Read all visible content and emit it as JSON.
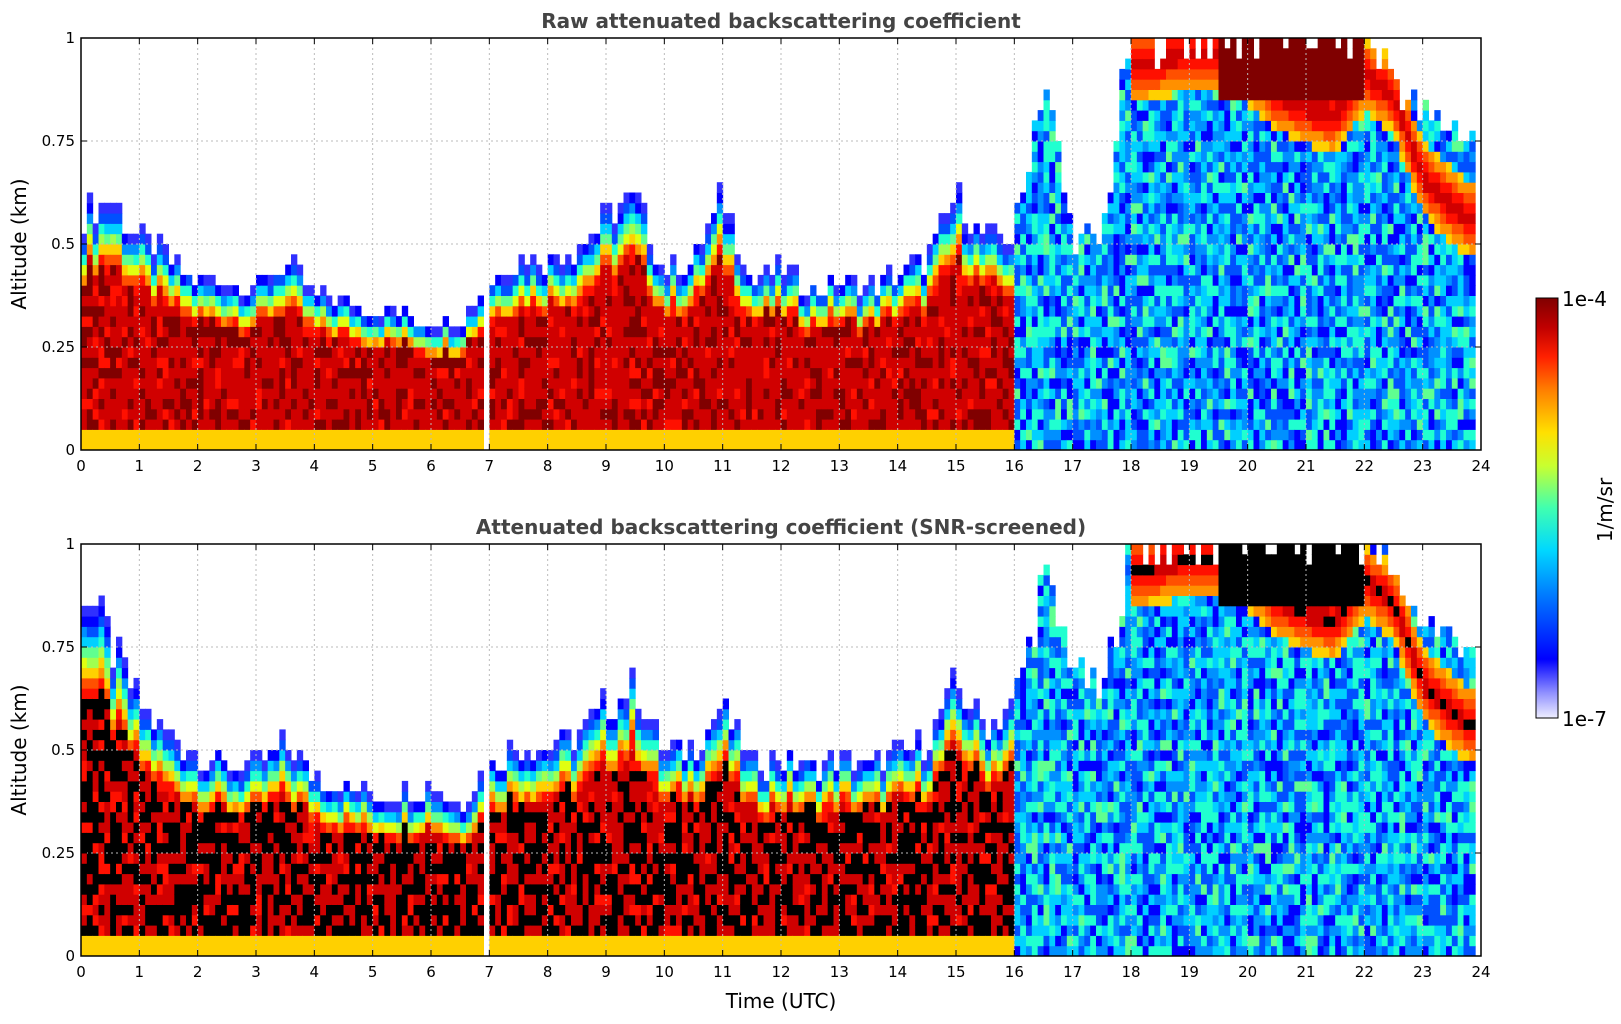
{
  "chart_data": [
    {
      "type": "heatmap",
      "title": "Raw attenuated backscattering coefficient",
      "xlabel": "",
      "ylabel": "Altitude (km)",
      "xlim": [
        0,
        24
      ],
      "ylim": [
        0,
        1
      ],
      "xticks": [
        "0",
        "1",
        "2",
        "3",
        "4",
        "5",
        "6",
        "7",
        "8",
        "9",
        "10",
        "11",
        "12",
        "13",
        "14",
        "15",
        "16",
        "17",
        "18",
        "19",
        "20",
        "21",
        "22",
        "23",
        "24"
      ],
      "yticks": [
        "0",
        "0.25",
        "0.5",
        "0.75",
        "1"
      ],
      "grid": true,
      "screened": false,
      "layer_top_km": [
        [
          0,
          0.55
        ],
        [
          0.5,
          0.6
        ],
        [
          1,
          0.5
        ],
        [
          1.5,
          0.45
        ],
        [
          2,
          0.4
        ],
        [
          2.5,
          0.4
        ],
        [
          3,
          0.38
        ],
        [
          3.5,
          0.45
        ],
        [
          4,
          0.36
        ],
        [
          4.5,
          0.35
        ],
        [
          5,
          0.33
        ],
        [
          5.5,
          0.32
        ],
        [
          6,
          0.3
        ],
        [
          6.5,
          0.3
        ],
        [
          7,
          0.4
        ],
        [
          7.5,
          0.45
        ],
        [
          8,
          0.45
        ],
        [
          8.5,
          0.48
        ],
        [
          9,
          0.55
        ],
        [
          9.5,
          0.6
        ],
        [
          10,
          0.42
        ],
        [
          10.5,
          0.45
        ],
        [
          11,
          0.6
        ],
        [
          11.5,
          0.4
        ],
        [
          12,
          0.42
        ],
        [
          12.5,
          0.38
        ],
        [
          13,
          0.4
        ],
        [
          13.5,
          0.38
        ],
        [
          14,
          0.42
        ],
        [
          14.5,
          0.45
        ],
        [
          15,
          0.6
        ],
        [
          15.5,
          0.5
        ],
        [
          16,
          0.5
        ],
        [
          16.5,
          0.9
        ],
        [
          17,
          0.5
        ],
        [
          17.5,
          0.5
        ],
        [
          18,
          1.0
        ],
        [
          19,
          1.0
        ],
        [
          20,
          1.0
        ],
        [
          21,
          1.0
        ],
        [
          22,
          1.0
        ],
        [
          23,
          0.8
        ],
        [
          23.8,
          0.75
        ]
      ],
      "upper_layer_km": [
        [
          18,
          0.92
        ],
        [
          19,
          0.95
        ],
        [
          19.8,
          0.95
        ],
        [
          20.5,
          0.85
        ],
        [
          21,
          0.82
        ],
        [
          21.5,
          0.8
        ],
        [
          22,
          0.9
        ],
        [
          22.5,
          0.85
        ],
        [
          23,
          0.65
        ],
        [
          23.5,
          0.58
        ],
        [
          23.8,
          0.55
        ]
      ]
    },
    {
      "type": "heatmap",
      "title": "Attenuated backscattering coefficient (SNR-screened)",
      "xlabel": "Time (UTC)",
      "ylabel": "Altitude (km)",
      "xlim": [
        0,
        24
      ],
      "ylim": [
        0,
        1
      ],
      "xticks": [
        "0",
        "1",
        "2",
        "3",
        "4",
        "5",
        "6",
        "7",
        "8",
        "9",
        "10",
        "11",
        "12",
        "13",
        "14",
        "15",
        "16",
        "17",
        "18",
        "19",
        "20",
        "21",
        "22",
        "23",
        "24"
      ],
      "yticks": [
        "0",
        "0.25",
        "0.5",
        "0.75",
        "1"
      ],
      "grid": true,
      "screened": true,
      "layer_top_km": [
        [
          0,
          0.9
        ],
        [
          0.5,
          0.75
        ],
        [
          1,
          0.6
        ],
        [
          1.5,
          0.52
        ],
        [
          2,
          0.48
        ],
        [
          2.5,
          0.45
        ],
        [
          3,
          0.45
        ],
        [
          3.5,
          0.5
        ],
        [
          4,
          0.43
        ],
        [
          4.5,
          0.4
        ],
        [
          5,
          0.38
        ],
        [
          5.5,
          0.38
        ],
        [
          6,
          0.4
        ],
        [
          6.5,
          0.35
        ],
        [
          7,
          0.45
        ],
        [
          7.5,
          0.5
        ],
        [
          8,
          0.5
        ],
        [
          8.5,
          0.52
        ],
        [
          9,
          0.6
        ],
        [
          9.5,
          0.65
        ],
        [
          10,
          0.48
        ],
        [
          10.5,
          0.5
        ],
        [
          11,
          0.6
        ],
        [
          11.5,
          0.45
        ],
        [
          12,
          0.47
        ],
        [
          12.5,
          0.45
        ],
        [
          13,
          0.47
        ],
        [
          13.5,
          0.45
        ],
        [
          14,
          0.48
        ],
        [
          14.5,
          0.5
        ],
        [
          15,
          0.65
        ],
        [
          15.5,
          0.55
        ],
        [
          16,
          0.6
        ],
        [
          16.5,
          0.9
        ],
        [
          17,
          0.7
        ],
        [
          17.5,
          0.6
        ],
        [
          18,
          1.0
        ],
        [
          19,
          1.0
        ],
        [
          20,
          1.0
        ],
        [
          21,
          1.0
        ],
        [
          22,
          1.0
        ],
        [
          23,
          0.8
        ],
        [
          23.8,
          0.75
        ]
      ],
      "upper_layer_km": [
        [
          18,
          0.92
        ],
        [
          19,
          0.95
        ],
        [
          19.8,
          0.95
        ],
        [
          20.5,
          0.85
        ],
        [
          21,
          0.82
        ],
        [
          21.5,
          0.8
        ],
        [
          22,
          0.9
        ],
        [
          22.5,
          0.85
        ],
        [
          23,
          0.65
        ],
        [
          23.5,
          0.58
        ],
        [
          23.8,
          0.55
        ]
      ]
    }
  ],
  "colorbar": {
    "max_label": "1e-4",
    "min_label": "1e-7",
    "units": "1/m/sr",
    "colors": [
      "#eeeeff",
      "#c8c8ff",
      "#8888ff",
      "#3030ff",
      "#0000ff",
      "#0050ff",
      "#0090ff",
      "#00d0ff",
      "#20ffd0",
      "#60ff90",
      "#a0ff50",
      "#e0ff10",
      "#ffd000",
      "#ff9000",
      "#ff5000",
      "#ff1000",
      "#d00000",
      "#800000"
    ]
  }
}
